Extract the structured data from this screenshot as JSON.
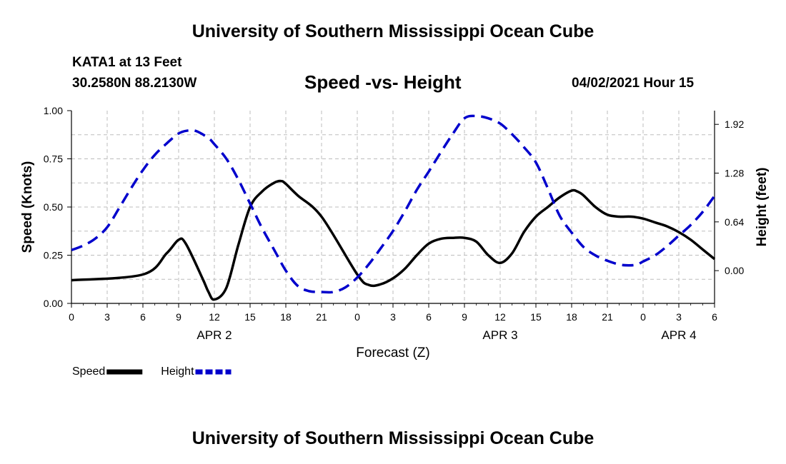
{
  "header": {
    "title": "University of Southern Mississippi Ocean Cube",
    "station": "KATA1 at 13 Feet",
    "coordinates": "30.2580N  88.2130W",
    "subtitle": "Speed -vs- Height",
    "datestamp": "04/02/2021 Hour 15"
  },
  "footer": {
    "title": "University of Southern Mississippi Ocean Cube"
  },
  "chart_data": {
    "type": "line",
    "title": "Speed -vs- Height",
    "xlabel": "Forecast (Z)",
    "ylabel": "Speed (Knots)",
    "y2label": "Height (feet)",
    "xlim": [
      0,
      54
    ],
    "ylim": [
      0,
      1.0
    ],
    "y2lim": [
      -0.4297,
      2.1
    ],
    "x_ticks": [
      0,
      3,
      6,
      9,
      12,
      15,
      18,
      21,
      24,
      27,
      30,
      33,
      36,
      39,
      42,
      45,
      48,
      51,
      54
    ],
    "x_tick_labels": [
      "0",
      "3",
      "6",
      "9",
      "12",
      "15",
      "18",
      "21",
      "0",
      "3",
      "6",
      "9",
      "12",
      "15",
      "18",
      "21",
      "0",
      "3",
      "6"
    ],
    "date_labels": [
      {
        "x": 12,
        "label": "APR 2"
      },
      {
        "x": 36,
        "label": "APR 3"
      },
      {
        "x": 51,
        "label": "APR 4"
      }
    ],
    "y_ticks": [
      0.0,
      0.25,
      0.5,
      0.75,
      1.0
    ],
    "y_tick_labels": [
      "0.00",
      "0.25",
      "0.50",
      "0.75",
      "1.00"
    ],
    "y2_ticks": [
      0.0,
      0.64,
      1.28,
      1.92
    ],
    "y2_tick_labels": [
      "0.00",
      "0.64",
      "1.28",
      "1.92"
    ],
    "grid": true,
    "legend_position": "bottom-left",
    "series": [
      {
        "name": "Speed",
        "axis": "left",
        "color": "#000000",
        "style": "solid",
        "x": [
          0,
          6,
          8,
          9,
          9.6,
          11,
          11.5,
          12,
          13,
          14,
          15,
          16,
          17,
          17.6,
          18,
          19,
          21,
          24,
          25,
          26,
          27,
          28,
          29,
          30,
          31,
          32,
          33,
          34,
          35,
          36,
          37,
          38,
          39,
          40,
          41,
          42,
          42.5,
          43,
          44,
          45,
          46,
          47,
          48,
          49,
          50,
          51,
          52,
          53,
          54
        ],
        "y": [
          0.12,
          0.15,
          0.26,
          0.33,
          0.31,
          0.13,
          0.06,
          0.02,
          0.08,
          0.3,
          0.5,
          0.58,
          0.625,
          0.635,
          0.62,
          0.56,
          0.45,
          0.15,
          0.095,
          0.1,
          0.13,
          0.18,
          0.25,
          0.31,
          0.335,
          0.34,
          0.34,
          0.32,
          0.25,
          0.21,
          0.26,
          0.37,
          0.45,
          0.5,
          0.55,
          0.585,
          0.58,
          0.56,
          0.5,
          0.46,
          0.45,
          0.45,
          0.44,
          0.42,
          0.4,
          0.37,
          0.33,
          0.28,
          0.23
        ]
      },
      {
        "name": "Height",
        "axis": "right",
        "color": "#0000cc",
        "style": "dashed",
        "x": [
          0,
          1,
          2,
          3,
          4,
          5,
          6,
          7,
          8,
          9,
          9.8,
          10.5,
          11.5,
          12,
          13,
          14,
          15,
          16,
          17,
          18,
          19,
          20,
          21,
          22,
          23,
          24,
          25,
          26,
          27,
          28,
          29,
          30,
          31,
          32,
          33,
          34,
          35,
          36,
          37,
          38,
          39,
          40,
          41,
          42,
          43,
          44,
          45,
          46,
          46.8,
          47.5,
          48,
          49,
          50,
          51,
          52,
          53,
          54
        ],
        "y": [
          0.27,
          0.33,
          0.42,
          0.57,
          0.82,
          1.08,
          1.32,
          1.52,
          1.67,
          1.8,
          1.84,
          1.83,
          1.74,
          1.66,
          1.47,
          1.2,
          0.88,
          0.56,
          0.28,
          0.0,
          -0.2,
          -0.27,
          -0.28,
          -0.28,
          -0.22,
          -0.09,
          0.09,
          0.3,
          0.52,
          0.78,
          1.06,
          1.3,
          1.55,
          1.79,
          2.0,
          2.03,
          2.0,
          1.93,
          1.79,
          1.62,
          1.42,
          1.08,
          0.72,
          0.5,
          0.31,
          0.2,
          0.13,
          0.08,
          0.07,
          0.08,
          0.12,
          0.2,
          0.32,
          0.46,
          0.6,
          0.77,
          0.98
        ]
      }
    ]
  }
}
